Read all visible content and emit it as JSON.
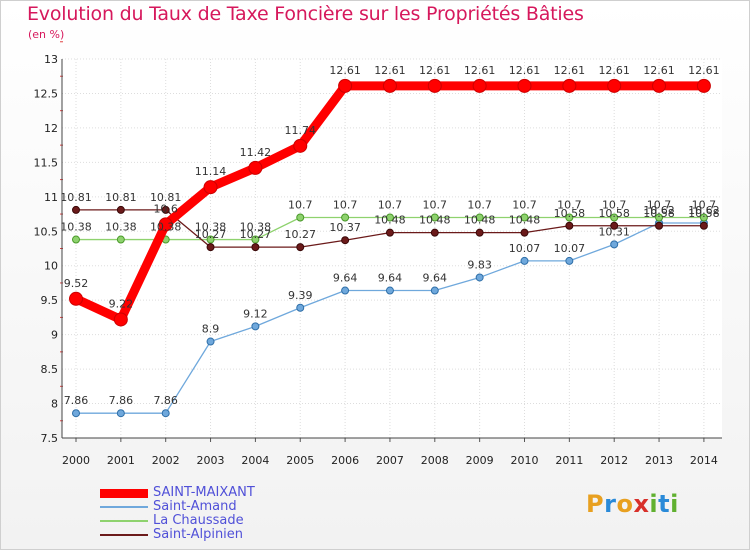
{
  "title": "Evolution du Taux de Taxe Foncière sur les Propriétés Bâties",
  "subtitle": "(en %)",
  "logo": {
    "text": "Proxiti",
    "letters": [
      "P",
      "r",
      "o",
      "x",
      "i",
      "t",
      "i"
    ],
    "colors": [
      "#e8a020",
      "#2a8ad8",
      "#e8a020",
      "#d8302a",
      "#60b030",
      "#2a8ad8",
      "#60b030"
    ]
  },
  "chart_data": {
    "type": "line",
    "title": "Evolution du Taux de Taxe Foncière sur les Propriétés Bâties",
    "ylabel": "(en %)",
    "x": [
      "2000",
      "2001",
      "2002",
      "2003",
      "2004",
      "2005",
      "2006",
      "2007",
      "2008",
      "2009",
      "2010",
      "2011",
      "2012",
      "2013",
      "2014"
    ],
    "ylim": [
      7.5,
      13
    ],
    "yticks": [
      "7.5",
      "8",
      "8.5",
      "9",
      "9.5",
      "10",
      "10.5",
      "11",
      "11.5",
      "12",
      "12.5",
      "13"
    ],
    "grid": true,
    "series": [
      {
        "name": "SAINT-MAIXANT",
        "color": "#ff0000",
        "values": [
          9.52,
          9.22,
          10.6,
          11.14,
          11.42,
          11.74,
          12.61,
          12.61,
          12.61,
          12.61,
          12.61,
          12.61,
          12.61,
          12.61,
          12.61
        ],
        "labels": [
          "9.52",
          "9.22",
          "10.6",
          "11.14",
          "11.42",
          "11.74",
          "12.61",
          "12.61",
          "12.61",
          "12.61",
          "12.61",
          "12.61",
          "12.61",
          "12.61",
          "12.61"
        ]
      },
      {
        "name": "Saint-Amand",
        "color": "#6fa8dc",
        "values": [
          7.86,
          7.86,
          7.86,
          8.9,
          9.12,
          9.39,
          9.64,
          9.64,
          9.64,
          9.83,
          10.07,
          10.07,
          10.31,
          10.62,
          10.62
        ],
        "labels": [
          "7.86",
          "7.86",
          "7.86",
          "8.9",
          "9.12",
          "9.39",
          "9.64",
          "9.64",
          "9.64",
          "9.83",
          "10.07",
          "10.07",
          "10.31",
          "10.62",
          "10.62"
        ]
      },
      {
        "name": "La Chaussade",
        "color": "#8ed26e",
        "values": [
          10.38,
          10.38,
          10.38,
          10.38,
          10.38,
          10.7,
          10.7,
          10.7,
          10.7,
          10.7,
          10.7,
          10.7,
          10.7,
          10.7,
          10.7
        ],
        "labels": [
          "10.38",
          "10.38",
          "10.38",
          "10.38",
          "10.38",
          "10.7",
          "10.7",
          "10.7",
          "10.7",
          "10.7",
          "10.7",
          "10.7",
          "10.7",
          "10.7",
          "10.7"
        ]
      },
      {
        "name": "Saint-Alpinien",
        "color": "#6b1a1a",
        "values": [
          10.81,
          10.81,
          10.81,
          10.27,
          10.27,
          10.27,
          10.37,
          10.48,
          10.48,
          10.48,
          10.48,
          10.58,
          10.58,
          10.58,
          10.58
        ],
        "labels": [
          "10.81",
          "10.81",
          "10.81",
          "10.27",
          "10.27",
          "10.27",
          "10.37",
          "10.48",
          "10.48",
          "10.48",
          "10.48",
          "10.58",
          "10.58",
          "10.58",
          "10.58"
        ]
      }
    ],
    "legend": [
      "SAINT-MAIXANT",
      "Saint-Amand",
      "La Chaussade",
      "Saint-Alpinien"
    ]
  }
}
